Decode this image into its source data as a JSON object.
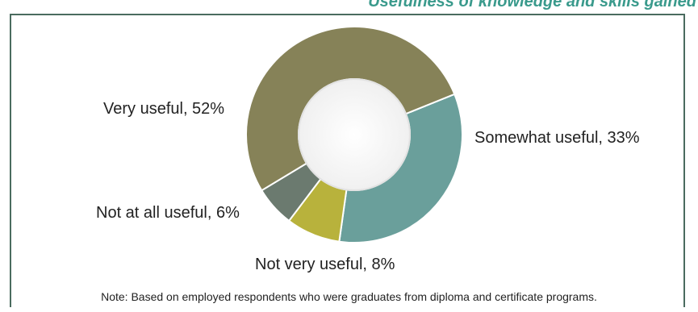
{
  "header": {
    "title": "Usefulness of knowledge and skills gained"
  },
  "chart_data": {
    "type": "pie",
    "donut": true,
    "categories": [
      "Very useful",
      "Somewhat useful",
      "Not very useful",
      "Not at all useful"
    ],
    "values": [
      52,
      33,
      8,
      6
    ],
    "labels": [
      "Very useful, 52%",
      "Somewhat useful, 33%",
      "Not very useful, 8%",
      "Not at all useful, 6%"
    ],
    "colors": [
      "#868258",
      "#6a9f9b",
      "#b8b23c",
      "#6b7a6f"
    ],
    "title": ""
  },
  "note": "Note: Based on employed respondents who were graduates from diploma and certificate programs."
}
